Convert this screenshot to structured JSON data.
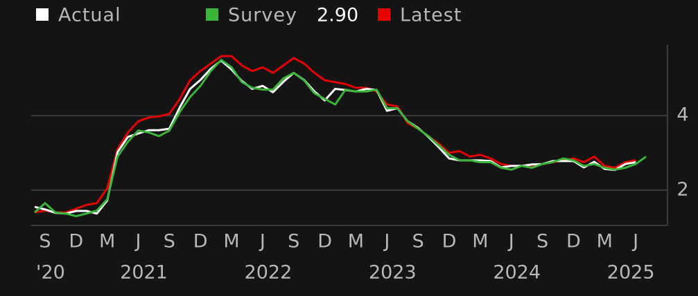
{
  "chart_data": {
    "type": "line",
    "categories": [
      "2020-08",
      "2020-09",
      "2020-10",
      "2020-11",
      "2020-12",
      "2021-01",
      "2021-02",
      "2021-03",
      "2021-04",
      "2021-05",
      "2021-06",
      "2021-07",
      "2021-08",
      "2021-09",
      "2021-10",
      "2021-11",
      "2021-12",
      "2022-01",
      "2022-02",
      "2022-03",
      "2022-04",
      "2022-05",
      "2022-06",
      "2022-07",
      "2022-08",
      "2022-09",
      "2022-10",
      "2022-11",
      "2022-12",
      "2023-01",
      "2023-02",
      "2023-03",
      "2023-04",
      "2023-05",
      "2023-06",
      "2023-07",
      "2023-08",
      "2023-09",
      "2023-10",
      "2023-11",
      "2023-12",
      "2024-01",
      "2024-02",
      "2024-03",
      "2024-04",
      "2024-05",
      "2024-06",
      "2024-07",
      "2024-08",
      "2024-09",
      "2024-10",
      "2024-11",
      "2024-12",
      "2025-01",
      "2025-02",
      "2025-03",
      "2025-04",
      "2025-05",
      "2025-06",
      "2025-07"
    ],
    "series": [
      {
        "name": "Actual",
        "color": "#ffffff",
        "values": [
          1.55,
          1.48,
          1.39,
          1.37,
          1.44,
          1.44,
          1.37,
          1.72,
          3.02,
          3.43,
          3.52,
          3.61,
          3.61,
          3.65,
          4.22,
          4.72,
          4.96,
          5.26,
          5.48,
          5.24,
          4.93,
          4.72,
          4.8,
          4.63,
          4.91,
          5.15,
          4.96,
          4.65,
          4.41,
          4.72,
          4.69,
          4.65,
          4.72,
          4.69,
          4.13,
          4.2,
          3.85,
          3.67,
          3.43,
          3.15,
          2.85,
          2.8,
          2.8,
          2.8,
          2.78,
          2.61,
          2.65,
          2.65,
          2.69,
          2.7,
          2.78,
          2.78,
          2.78,
          2.61,
          2.76,
          2.57,
          2.54,
          2.7,
          2.75,
          null
        ]
      },
      {
        "name": "Survey",
        "color": "#3ab53a",
        "legend_value": "2.90",
        "values": [
          1.4,
          1.65,
          1.4,
          1.37,
          1.3,
          1.37,
          1.45,
          1.75,
          2.9,
          3.3,
          3.6,
          3.55,
          3.45,
          3.6,
          4.1,
          4.5,
          4.8,
          5.2,
          5.5,
          5.3,
          4.9,
          4.75,
          4.7,
          4.7,
          5.0,
          5.15,
          4.95,
          4.6,
          4.45,
          4.3,
          4.7,
          4.65,
          4.65,
          4.7,
          4.2,
          4.2,
          3.85,
          3.65,
          3.45,
          3.2,
          2.95,
          2.8,
          2.8,
          2.75,
          2.75,
          2.6,
          2.55,
          2.65,
          2.6,
          2.7,
          2.75,
          2.85,
          2.8,
          2.65,
          2.7,
          2.6,
          2.55,
          2.6,
          2.7,
          2.9
        ]
      },
      {
        "name": "Latest",
        "color": "#e60000",
        "values": [
          1.4,
          1.45,
          1.4,
          1.4,
          1.5,
          1.6,
          1.65,
          2.05,
          3.1,
          3.55,
          3.85,
          3.95,
          3.98,
          4.05,
          4.45,
          4.95,
          5.2,
          5.4,
          5.6,
          5.6,
          5.35,
          5.2,
          5.3,
          5.15,
          5.35,
          5.55,
          5.4,
          5.15,
          4.95,
          4.9,
          4.85,
          4.75,
          4.75,
          4.65,
          4.3,
          4.25,
          3.8,
          3.65,
          3.45,
          3.25,
          3.0,
          3.05,
          2.9,
          2.95,
          2.85,
          2.7,
          2.65,
          2.65,
          2.65,
          2.7,
          2.75,
          2.8,
          2.85,
          2.75,
          2.9,
          2.65,
          2.6,
          2.75,
          2.8,
          null
        ]
      }
    ],
    "xticks": [
      {
        "value": "2020-09",
        "label": "S"
      },
      {
        "value": "2020-12",
        "label": "D"
      },
      {
        "value": "2021-03",
        "label": "M"
      },
      {
        "value": "2021-06",
        "label": "J"
      },
      {
        "value": "2021-09",
        "label": "S"
      },
      {
        "value": "2021-12",
        "label": "D"
      },
      {
        "value": "2022-03",
        "label": "M"
      },
      {
        "value": "2022-06",
        "label": "J"
      },
      {
        "value": "2022-09",
        "label": "S"
      },
      {
        "value": "2022-12",
        "label": "D"
      },
      {
        "value": "2023-03",
        "label": "M"
      },
      {
        "value": "2023-06",
        "label": "J"
      },
      {
        "value": "2023-09",
        "label": "S"
      },
      {
        "value": "2023-12",
        "label": "D"
      },
      {
        "value": "2024-03",
        "label": "M"
      },
      {
        "value": "2024-06",
        "label": "J"
      },
      {
        "value": "2024-09",
        "label": "S"
      },
      {
        "value": "2024-12",
        "label": "D"
      },
      {
        "value": "2025-03",
        "label": "M"
      },
      {
        "value": "2025-06",
        "label": "J"
      }
    ],
    "xyears": [
      {
        "value": "2020-09",
        "label": "'20"
      },
      {
        "value": "2021-06",
        "label": "2021"
      },
      {
        "value": "2022-06",
        "label": "2022"
      },
      {
        "value": "2023-06",
        "label": "2023"
      },
      {
        "value": "2024-06",
        "label": "2024"
      },
      {
        "value": "2025-05",
        "label": "2025"
      }
    ],
    "ylim": [
      1.05,
      5.9
    ],
    "yticks": [
      2,
      4
    ],
    "grid": true
  }
}
